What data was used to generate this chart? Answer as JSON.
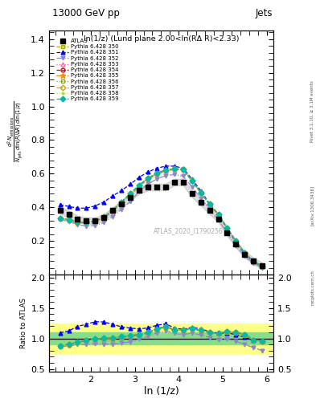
{
  "title_top": "13000 GeV pp",
  "title_right": "Jets",
  "panel_title": "ln(1/z) (Lund plane 2.00<ln(RΔ R)<2.33)",
  "xlabel": "ln (1/z)",
  "ylabel_ratio": "Ratio to ATLAS",
  "watermark": "ATLAS_2020_I1790256",
  "rivet_label": "Rivet 3.1.10, ≥ 3.1M events",
  "arxiv_label": "[arXiv:1306.3436]",
  "mcplots_label": "mcplots.cern.ch",
  "x_data": [
    1.3,
    1.5,
    1.7,
    1.9,
    2.1,
    2.3,
    2.5,
    2.7,
    2.9,
    3.1,
    3.3,
    3.5,
    3.7,
    3.9,
    4.1,
    4.3,
    4.5,
    4.7,
    4.9,
    5.1,
    5.3,
    5.5,
    5.7,
    5.9
  ],
  "atlas_data": [
    0.38,
    0.36,
    0.33,
    0.32,
    0.32,
    0.34,
    0.38,
    0.42,
    0.46,
    0.5,
    0.52,
    0.52,
    0.52,
    0.55,
    0.55,
    0.48,
    0.43,
    0.38,
    0.33,
    0.25,
    0.18,
    0.12,
    0.08,
    0.05
  ],
  "atlas_err_lo": [
    0.36,
    0.34,
    0.31,
    0.3,
    0.3,
    0.32,
    0.36,
    0.4,
    0.44,
    0.48,
    0.5,
    0.5,
    0.5,
    0.53,
    0.53,
    0.46,
    0.41,
    0.36,
    0.31,
    0.23,
    0.16,
    0.1,
    0.06,
    0.03
  ],
  "atlas_err_hi": [
    0.4,
    0.38,
    0.35,
    0.34,
    0.34,
    0.36,
    0.4,
    0.44,
    0.48,
    0.52,
    0.54,
    0.54,
    0.54,
    0.57,
    0.57,
    0.5,
    0.45,
    0.4,
    0.35,
    0.27,
    0.2,
    0.14,
    0.1,
    0.07
  ],
  "series": [
    {
      "label": "Pythia 6.428 350",
      "color": "#aaaa00",
      "linestyle": "--",
      "marker": "s",
      "markerfill": "none",
      "y": [
        0.335,
        0.325,
        0.31,
        0.308,
        0.315,
        0.335,
        0.375,
        0.425,
        0.475,
        0.525,
        0.565,
        0.595,
        0.615,
        0.625,
        0.625,
        0.555,
        0.485,
        0.415,
        0.355,
        0.275,
        0.195,
        0.128,
        0.078,
        0.048
      ]
    },
    {
      "label": "Pythia 6.428 351",
      "color": "#0000ff",
      "linestyle": "--",
      "marker": "^",
      "markerfill": "full",
      "y": [
        0.415,
        0.405,
        0.395,
        0.395,
        0.408,
        0.432,
        0.468,
        0.5,
        0.538,
        0.578,
        0.61,
        0.632,
        0.645,
        0.645,
        0.632,
        0.568,
        0.498,
        0.422,
        0.358,
        0.272,
        0.192,
        0.122,
        0.078,
        0.048
      ]
    },
    {
      "label": "Pythia 6.428 352",
      "color": "#8888cc",
      "linestyle": "-.",
      "marker": "v",
      "markerfill": "full",
      "y": [
        0.328,
        0.315,
        0.298,
        0.288,
        0.292,
        0.308,
        0.345,
        0.388,
        0.435,
        0.495,
        0.538,
        0.568,
        0.588,
        0.595,
        0.585,
        0.522,
        0.455,
        0.385,
        0.325,
        0.248,
        0.172,
        0.108,
        0.068,
        0.04
      ]
    },
    {
      "label": "Pythia 6.428 353",
      "color": "#ff66aa",
      "linestyle": ":",
      "marker": "^",
      "markerfill": "none",
      "y": [
        0.335,
        0.325,
        0.31,
        0.308,
        0.315,
        0.338,
        0.378,
        0.428,
        0.478,
        0.528,
        0.568,
        0.598,
        0.618,
        0.628,
        0.628,
        0.558,
        0.488,
        0.418,
        0.358,
        0.278,
        0.198,
        0.128,
        0.078,
        0.048
      ]
    },
    {
      "label": "Pythia 6.428 354",
      "color": "#cc0000",
      "linestyle": "--",
      "marker": "o",
      "markerfill": "none",
      "y": [
        0.335,
        0.325,
        0.31,
        0.308,
        0.318,
        0.342,
        0.382,
        0.432,
        0.482,
        0.532,
        0.572,
        0.602,
        0.622,
        0.628,
        0.625,
        0.558,
        0.488,
        0.418,
        0.358,
        0.278,
        0.198,
        0.128,
        0.078,
        0.048
      ]
    },
    {
      "label": "Pythia 6.428 355",
      "color": "#ff8800",
      "linestyle": "--",
      "marker": "*",
      "markerfill": "full",
      "y": [
        0.335,
        0.325,
        0.31,
        0.308,
        0.318,
        0.342,
        0.382,
        0.432,
        0.482,
        0.532,
        0.572,
        0.602,
        0.622,
        0.628,
        0.625,
        0.558,
        0.488,
        0.418,
        0.358,
        0.278,
        0.198,
        0.128,
        0.078,
        0.048
      ]
    },
    {
      "label": "Pythia 6.428 356",
      "color": "#88aa00",
      "linestyle": ":",
      "marker": "s",
      "markerfill": "none",
      "y": [
        0.335,
        0.325,
        0.31,
        0.308,
        0.318,
        0.342,
        0.382,
        0.432,
        0.482,
        0.532,
        0.572,
        0.602,
        0.622,
        0.628,
        0.625,
        0.558,
        0.488,
        0.418,
        0.358,
        0.278,
        0.198,
        0.128,
        0.078,
        0.048
      ]
    },
    {
      "label": "Pythia 6.428 357",
      "color": "#ccaa00",
      "linestyle": "-.",
      "marker": "D",
      "markerfill": "none",
      "y": [
        0.335,
        0.325,
        0.31,
        0.308,
        0.318,
        0.342,
        0.382,
        0.432,
        0.482,
        0.532,
        0.572,
        0.602,
        0.622,
        0.628,
        0.625,
        0.558,
        0.488,
        0.418,
        0.358,
        0.278,
        0.198,
        0.128,
        0.078,
        0.048
      ]
    },
    {
      "label": "Pythia 6.428 358",
      "color": "#bbdd44",
      "linestyle": ":",
      "marker": ".",
      "markerfill": "full",
      "y": [
        0.335,
        0.325,
        0.31,
        0.308,
        0.318,
        0.342,
        0.382,
        0.432,
        0.482,
        0.532,
        0.572,
        0.602,
        0.622,
        0.628,
        0.625,
        0.558,
        0.488,
        0.418,
        0.358,
        0.278,
        0.198,
        0.128,
        0.078,
        0.048
      ]
    },
    {
      "label": "Pythia 6.428 359",
      "color": "#00bbaa",
      "linestyle": "--",
      "marker": "D",
      "markerfill": "full",
      "y": [
        0.335,
        0.325,
        0.31,
        0.308,
        0.318,
        0.342,
        0.382,
        0.432,
        0.482,
        0.532,
        0.572,
        0.602,
        0.622,
        0.628,
        0.625,
        0.558,
        0.488,
        0.418,
        0.358,
        0.278,
        0.198,
        0.128,
        0.078,
        0.048
      ]
    }
  ],
  "ylim_main": [
    0.0,
    1.45
  ],
  "ylim_ratio": [
    0.45,
    2.05
  ],
  "xlim": [
    1.05,
    6.15
  ],
  "yticks_main": [
    0.2,
    0.4,
    0.6,
    0.8,
    1.0,
    1.2,
    1.4
  ],
  "yticks_ratio": [
    0.5,
    1.0,
    1.5,
    2.0
  ],
  "xticks": [
    2,
    3,
    4,
    5,
    6
  ],
  "ratio_green_lo": 0.9,
  "ratio_green_hi": 1.1,
  "ratio_yellow_lo": 0.75,
  "ratio_yellow_hi": 1.25,
  "bg_color": "#ffffff"
}
